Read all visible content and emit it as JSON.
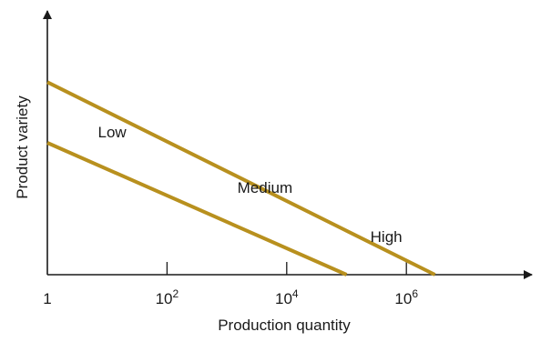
{
  "chart_data": {
    "type": "line",
    "xlabel": "Production quantity",
    "ylabel": "Product variety",
    "x_scale": "log",
    "xlim": [
      1,
      10000000
    ],
    "ylim": [
      0,
      1
    ],
    "x_ticks": [
      {
        "value": 1,
        "label": "1",
        "sup": ""
      },
      {
        "value": 100,
        "label": "10",
        "sup": "2"
      },
      {
        "value": 10000,
        "label": "10",
        "sup": "4"
      },
      {
        "value": 1000000,
        "label": "10",
        "sup": "6"
      }
    ],
    "series": [
      {
        "values": [
          {
            "x": 1,
            "y": 0.73
          },
          {
            "x": 3000000,
            "y": 0
          }
        ]
      },
      {
        "values": [
          {
            "x": 1,
            "y": 0.5
          },
          {
            "x": 100000,
            "y": 0
          }
        ]
      }
    ],
    "annotations": [
      {
        "text": "Low",
        "x": 7,
        "y": 0.52
      },
      {
        "text": "Medium",
        "x": 1500,
        "y": 0.31
      },
      {
        "text": "High",
        "x": 250000,
        "y": 0.125
      }
    ],
    "line_color": "#b8901e",
    "grid": false,
    "legend": "none"
  }
}
